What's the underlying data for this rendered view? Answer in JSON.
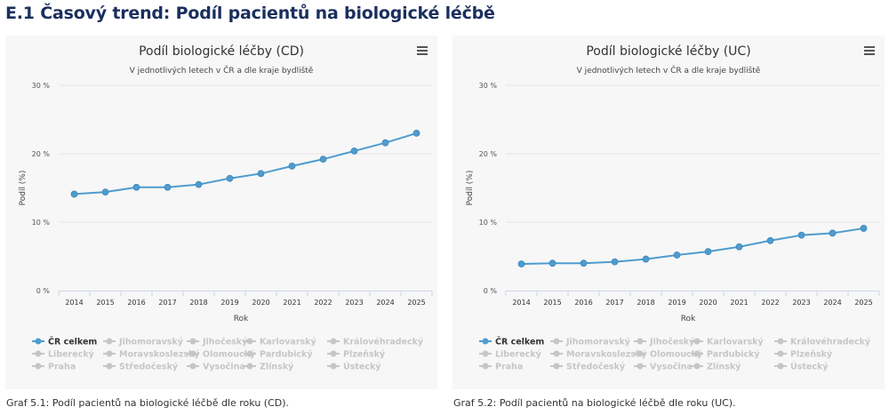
{
  "heading": "E.1 Časový trend: Podíl pacientů na biologické léčbě",
  "chart_data": [
    {
      "type": "line",
      "title": "Podíl biologické léčby (CD)",
      "subtitle": "V jednotlivých letech v ČR a dle kraje bydliště",
      "xlabel": "Rok",
      "ylabel": "Podíl (%)",
      "ylim": [
        0,
        30
      ],
      "yticks": [
        "0 %",
        "10 %",
        "20 %",
        "30 %"
      ],
      "yticks_values": [
        0,
        10,
        20,
        30
      ],
      "categories": [
        "2014",
        "2015",
        "2016",
        "2017",
        "2018",
        "2019",
        "2020",
        "2021",
        "2022",
        "2023",
        "2024",
        "2025"
      ],
      "grid": true,
      "legend_placement": "bottom-left",
      "series": [
        {
          "name": "ČR celkem",
          "visible": true,
          "color": "#4e9ccf",
          "values": [
            14.1,
            14.4,
            15.1,
            15.1,
            15.5,
            16.4,
            17.1,
            18.2,
            19.2,
            20.4,
            21.6,
            23.0
          ]
        },
        {
          "name": "Jihomoravský",
          "visible": false
        },
        {
          "name": "Jihočeský",
          "visible": false
        },
        {
          "name": "Karlovarský",
          "visible": false
        },
        {
          "name": "Královéhradecký",
          "visible": false
        },
        {
          "name": "Liberecký",
          "visible": false
        },
        {
          "name": "Moravskoslezský",
          "visible": false
        },
        {
          "name": "Olomoucký",
          "visible": false
        },
        {
          "name": "Pardubický",
          "visible": false
        },
        {
          "name": "Plzeňský",
          "visible": false
        },
        {
          "name": "Praha",
          "visible": false
        },
        {
          "name": "Středočeský",
          "visible": false
        },
        {
          "name": "Vysočina",
          "visible": false
        },
        {
          "name": "Zlínský",
          "visible": false
        },
        {
          "name": "Ústecký",
          "visible": false
        }
      ]
    },
    {
      "type": "line",
      "title": "Podíl biologické léčby (UC)",
      "subtitle": "V jednotlivých letech v ČR a dle kraje bydliště",
      "xlabel": "Rok",
      "ylabel": "Podíl (%)",
      "ylim": [
        0,
        30
      ],
      "yticks": [
        "0 %",
        "10 %",
        "20 %",
        "30 %"
      ],
      "yticks_values": [
        0,
        10,
        20,
        30
      ],
      "categories": [
        "2014",
        "2015",
        "2016",
        "2017",
        "2018",
        "2019",
        "2020",
        "2021",
        "2022",
        "2023",
        "2024",
        "2025"
      ],
      "grid": true,
      "legend_placement": "bottom-left",
      "series": [
        {
          "name": "ČR celkem",
          "visible": true,
          "color": "#4e9ccf",
          "values": [
            3.9,
            4.0,
            4.0,
            4.2,
            4.6,
            5.2,
            5.7,
            6.4,
            7.3,
            8.1,
            8.4,
            9.1
          ]
        },
        {
          "name": "Jihomoravský",
          "visible": false
        },
        {
          "name": "Jihočeský",
          "visible": false
        },
        {
          "name": "Karlovarský",
          "visible": false
        },
        {
          "name": "Královéhradecký",
          "visible": false
        },
        {
          "name": "Liberecký",
          "visible": false
        },
        {
          "name": "Moravskoslezský",
          "visible": false
        },
        {
          "name": "Olomoucký",
          "visible": false
        },
        {
          "name": "Pardubický",
          "visible": false
        },
        {
          "name": "Plzeňský",
          "visible": false
        },
        {
          "name": "Praha",
          "visible": false
        },
        {
          "name": "Středočeský",
          "visible": false
        },
        {
          "name": "Vysočina",
          "visible": false
        },
        {
          "name": "Zlínský",
          "visible": false
        },
        {
          "name": "Ústecký",
          "visible": false
        }
      ]
    }
  ],
  "captions": [
    "Graf 5.1: Podíl pacientů na biologické léčbě dle roku (CD).",
    "Graf 5.2: Podíl pacientů na biologické léčbě dle roku (UC)."
  ],
  "colors": {
    "series": "#4e9ccf",
    "hidden_legend": "#c6c6c6",
    "grid": "#e6e6e6",
    "heading": "#1b2f5e"
  },
  "icons": {
    "menu": "hamburger-menu-icon"
  }
}
